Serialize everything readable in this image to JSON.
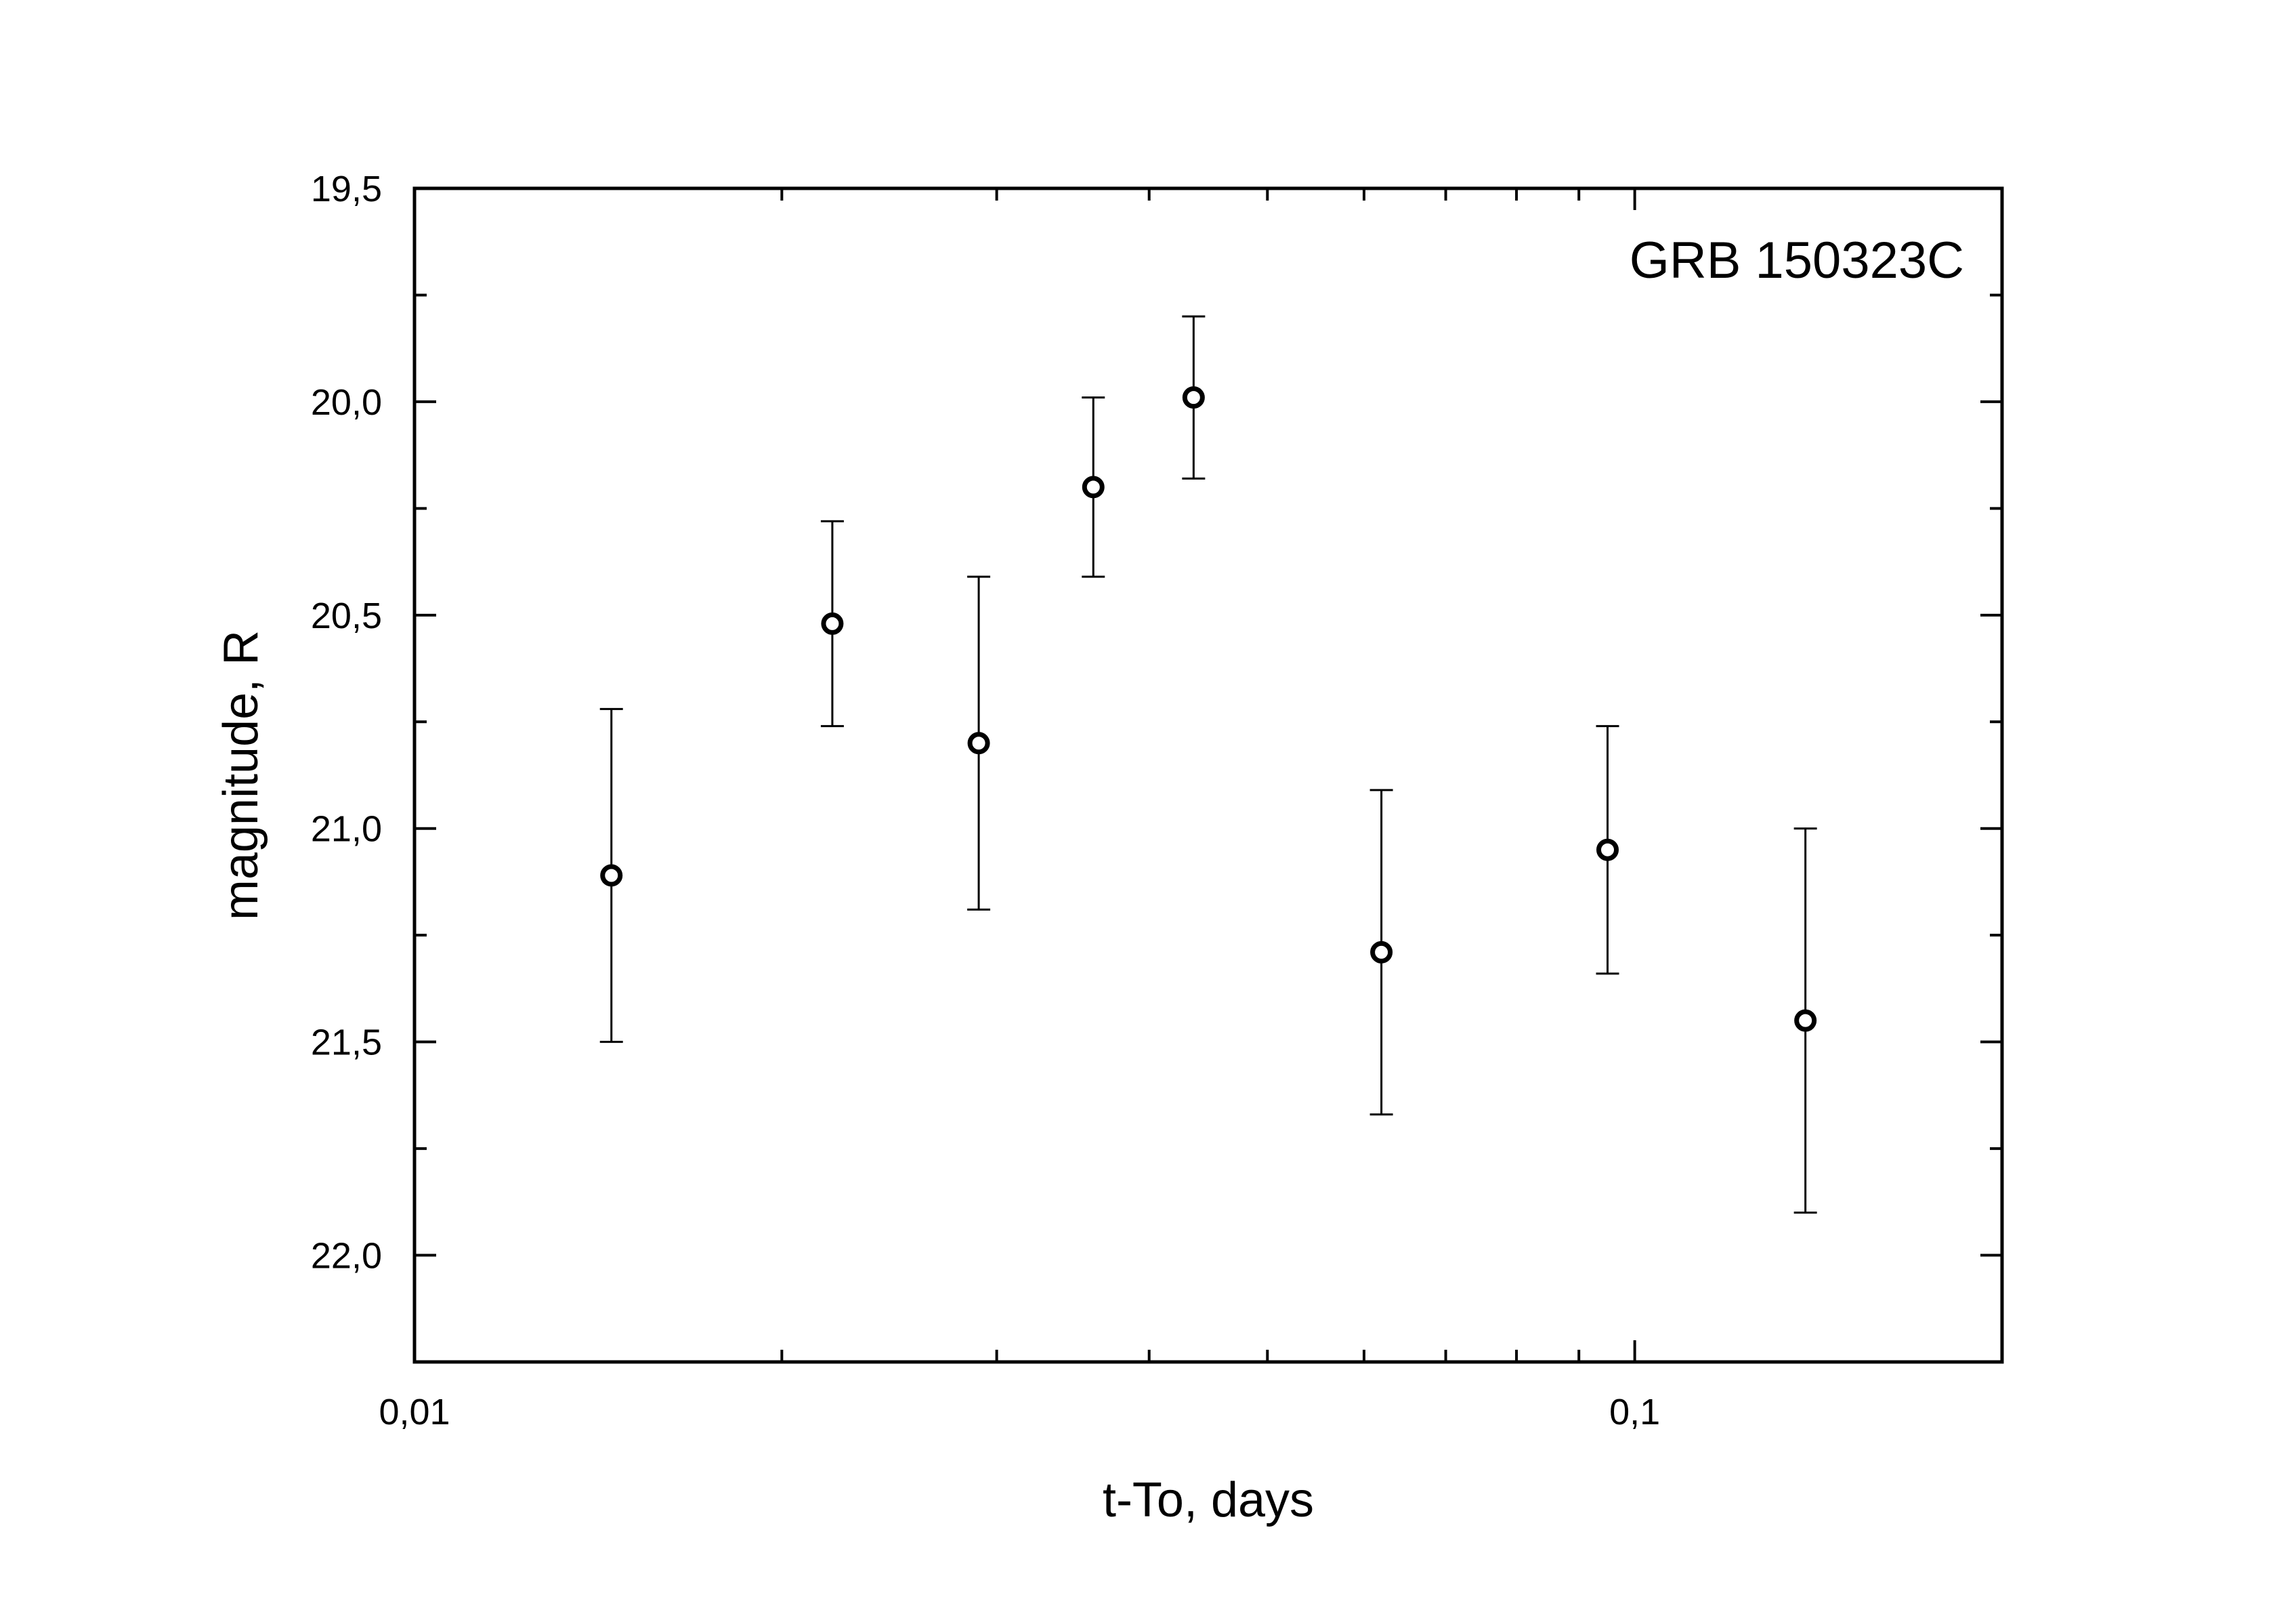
{
  "chart_data": {
    "type": "scatter",
    "title": "",
    "annotation": "GRB 150323C",
    "xlabel": "t-To, days",
    "ylabel": "magnitude, R",
    "x_scale": "log",
    "xlim": [
      0.01,
      0.2
    ],
    "ylim": [
      19.5,
      22.25
    ],
    "y_inverted": true,
    "grid": false,
    "x_tick_labels": [
      "0,01",
      "0,1"
    ],
    "x_tick_values": [
      0.01,
      0.1
    ],
    "y_tick_labels": [
      "19,5",
      "20,0",
      "20,5",
      "21,0",
      "21,5",
      "22,0"
    ],
    "y_tick_values": [
      19.5,
      20.0,
      20.5,
      21.0,
      21.5,
      22.0
    ],
    "series": [
      {
        "marker": "open-circle",
        "points": [
          {
            "x": 0.0145,
            "y": 21.11,
            "err_low": 21.5,
            "err_high": 20.72
          },
          {
            "x": 0.022,
            "y": 20.52,
            "err_low": 20.76,
            "err_high": 20.28
          },
          {
            "x": 0.029,
            "y": 20.8,
            "err_low": 21.19,
            "err_high": 20.41
          },
          {
            "x": 0.036,
            "y": 20.2,
            "err_low": 20.41,
            "err_high": 19.99
          },
          {
            "x": 0.0435,
            "y": 19.99,
            "err_low": 20.18,
            "err_high": 19.8
          },
          {
            "x": 0.062,
            "y": 21.29,
            "err_low": 21.67,
            "err_high": 20.91
          },
          {
            "x": 0.095,
            "y": 21.05,
            "err_low": 21.34,
            "err_high": 20.76
          },
          {
            "x": 0.138,
            "y": 21.45,
            "err_low": 21.9,
            "err_high": 21.0
          }
        ]
      }
    ]
  }
}
